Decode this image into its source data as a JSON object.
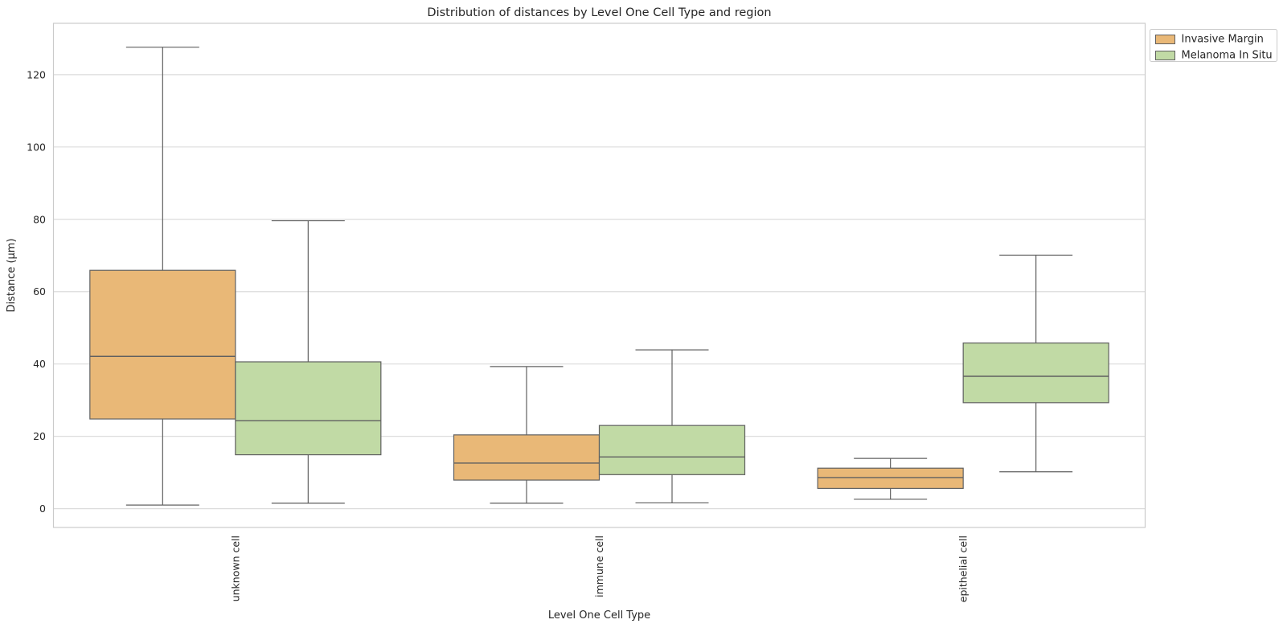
{
  "chart_data": {
    "type": "boxplot",
    "title": "Distribution of distances by Level One Cell Type and region",
    "xlabel": "Level One Cell Type",
    "ylabel": "Distance (μm)",
    "categories": [
      "unknown cell",
      "immune cell",
      "epithelial cell"
    ],
    "yticks": [
      0,
      20,
      40,
      60,
      80,
      100,
      120
    ],
    "ylim": [
      -5.2,
      134.2
    ],
    "grid": true,
    "legend": {
      "position": "upper-right-outside",
      "entries": [
        "Invasive Margin",
        "Melanoma In Situ"
      ]
    },
    "colors": {
      "invasive_margin": "#e9b877",
      "melanoma_in_situ": "#c1daa5",
      "box_line": "#606060",
      "grid_line": "#dcdcdc",
      "spine": "#cbcbcb",
      "text": "#262626"
    },
    "series": [
      {
        "name": "Invasive Margin",
        "color": "#e9b877",
        "boxes": [
          {
            "category": "unknown cell",
            "whisker_low": 1.0,
            "q1": 24.8,
            "median": 42.1,
            "q3": 65.9,
            "whisker_high": 127.6
          },
          {
            "category": "immune cell",
            "whisker_low": 1.5,
            "q1": 7.9,
            "median": 12.6,
            "q3": 20.4,
            "whisker_high": 39.3
          },
          {
            "category": "epithelial cell",
            "whisker_low": 2.6,
            "q1": 5.6,
            "median": 8.6,
            "q3": 11.2,
            "whisker_high": 13.9
          }
        ]
      },
      {
        "name": "Melanoma In Situ",
        "color": "#c1daa5",
        "boxes": [
          {
            "category": "unknown cell",
            "whisker_low": 1.5,
            "q1": 14.9,
            "median": 24.3,
            "q3": 40.6,
            "whisker_high": 79.6
          },
          {
            "category": "immune cell",
            "whisker_low": 1.6,
            "q1": 9.4,
            "median": 14.3,
            "q3": 23.0,
            "whisker_high": 43.9
          },
          {
            "category": "epithelial cell",
            "whisker_low": 10.2,
            "q1": 29.3,
            "median": 36.6,
            "q3": 45.8,
            "whisker_high": 70.1
          }
        ]
      }
    ]
  }
}
